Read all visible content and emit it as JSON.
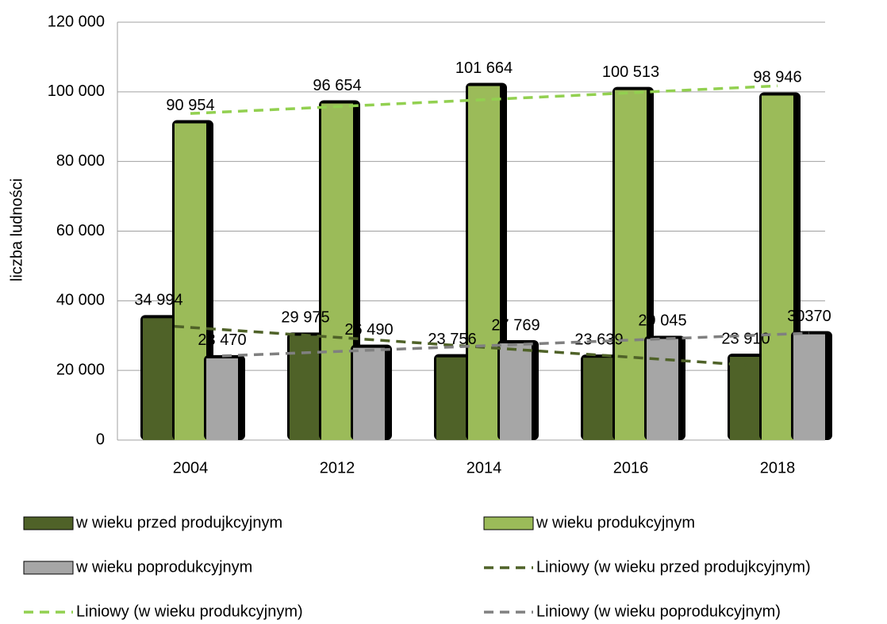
{
  "chart_data": {
    "type": "bar",
    "ylabel": "liczba ludności",
    "categories": [
      "2004",
      "2012",
      "2014",
      "2016",
      "2018"
    ],
    "series": [
      {
        "name": "w wieku przed produjkcyjnym",
        "color": "#4f6228",
        "values": [
          34994,
          29975,
          23756,
          23639,
          23910
        ],
        "value_labels": [
          "34 994",
          "29 975",
          "23 756",
          "23 639",
          "23 910"
        ]
      },
      {
        "name": "w wieku produkcyjnym",
        "color": "#9bbb59",
        "values": [
          90954,
          96654,
          101664,
          100513,
          98946
        ],
        "value_labels": [
          "90 954",
          "96 654",
          "101 664",
          "100 513",
          "98 946"
        ]
      },
      {
        "name": "w wieku poprodukcyjnym",
        "color": "#a6a6a6",
        "values": [
          23470,
          26490,
          27769,
          29045,
          30370
        ],
        "value_labels": [
          "23 470",
          "26 490",
          "27 769",
          "29 045",
          "30370"
        ]
      }
    ],
    "trendlines": [
      {
        "name": "Liniowy (w wieku przed produjkcyjnym)",
        "series": 0,
        "color": "#4f6228"
      },
      {
        "name": "Liniowy (w wieku produkcyjnym)",
        "series": 1,
        "color": "#92d050"
      },
      {
        "name": "Liniowy (w wieku poprodukcyjnym)",
        "series": 2,
        "color": "#808080"
      }
    ],
    "ylim": [
      0,
      120000
    ],
    "yticks": [
      0,
      {
        "value": 20000,
        "label": "20 000"
      },
      {
        "value": 40000,
        "label": "40 000"
      },
      {
        "value": 60000,
        "label": "60 000"
      },
      {
        "value": 80000,
        "label": "80 000"
      },
      {
        "value": 100000,
        "label": "100 000"
      },
      {
        "value": 120000,
        "label": "120 000"
      }
    ],
    "grid": true
  }
}
